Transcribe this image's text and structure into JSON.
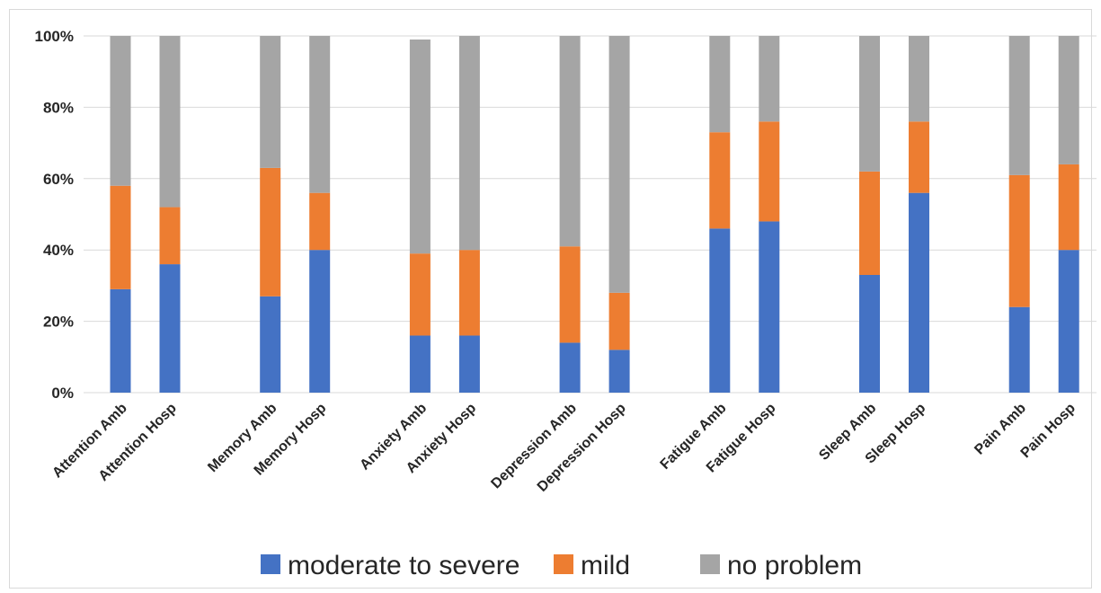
{
  "chart_data": {
    "type": "bar",
    "stacked": true,
    "categories": [
      "Attention Amb",
      "Attention Hosp",
      "Memory Amb",
      "Memory Hosp",
      "Anxiety Amb",
      "Anxiety Hosp",
      "Depression Amb",
      "Depression Hosp",
      "Fatigue Amb",
      "Fatigue Hosp",
      "Sleep Amb",
      "Sleep Hosp",
      "Pain Amb",
      "Pain Hosp"
    ],
    "series": [
      {
        "name": "moderate to severe",
        "color": "#4472c4",
        "values": [
          29,
          36,
          27,
          40,
          16,
          16,
          14,
          12,
          46,
          48,
          33,
          56,
          24,
          40
        ]
      },
      {
        "name": "mild",
        "color": "#ed7d31",
        "values": [
          29,
          16,
          36,
          16,
          23,
          24,
          27,
          16,
          27,
          28,
          29,
          20,
          37,
          24
        ]
      },
      {
        "name": "no problem",
        "color": "#a5a5a5",
        "values": [
          42,
          48,
          37,
          44,
          60,
          60,
          59,
          72,
          27,
          24,
          38,
          24,
          39,
          36
        ]
      }
    ],
    "yticks": [
      "0%",
      "20%",
      "40%",
      "60%",
      "80%",
      "100%"
    ],
    "ylim": [
      0,
      100
    ],
    "grid": true,
    "legend": "bottom"
  }
}
